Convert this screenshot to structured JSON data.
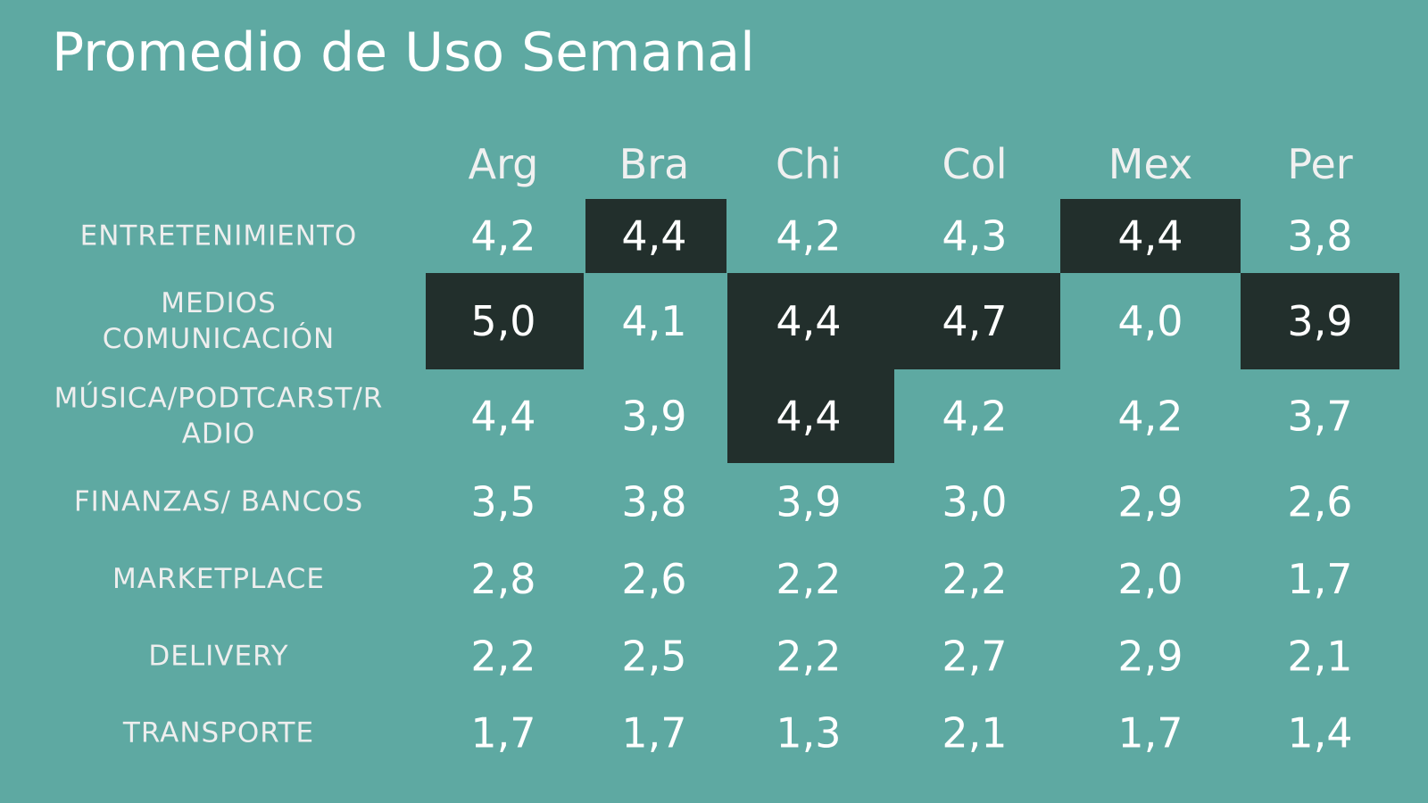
{
  "colors": {
    "background": "#5ea9a2",
    "highlight": "#222f2c",
    "text": "#ffffff"
  },
  "chart_data": {
    "type": "table",
    "title": "Promedio de Uso Semanal",
    "columns": [
      "Arg",
      "Bra",
      "Chi",
      "Col",
      "Mex",
      "Per"
    ],
    "rows": [
      {
        "label": [
          "ENTRETENIMIENTO"
        ],
        "values": [
          "4,2",
          "4,4",
          "4,2",
          "4,3",
          "4,4",
          "3,8"
        ],
        "highlighted": [
          false,
          true,
          false,
          false,
          true,
          false
        ]
      },
      {
        "label": [
          "MEDIOS",
          "COMUNICACIÓN"
        ],
        "values": [
          "5,0",
          "4,1",
          "4,4",
          "4,7",
          "4,0",
          "3,9"
        ],
        "highlighted": [
          true,
          false,
          true,
          true,
          false,
          true
        ]
      },
      {
        "label": [
          "MÚSICA/PODTCARST/R",
          "ADIO"
        ],
        "values": [
          "4,4",
          "3,9",
          "4,4",
          "4,2",
          "4,2",
          "3,7"
        ],
        "highlighted": [
          false,
          false,
          true,
          false,
          false,
          false
        ]
      },
      {
        "label": [
          "FINANZAS/ BANCOS"
        ],
        "values": [
          "3,5",
          "3,8",
          "3,9",
          "3,0",
          "2,9",
          "2,6"
        ],
        "highlighted": [
          false,
          false,
          false,
          false,
          false,
          false
        ]
      },
      {
        "label": [
          "MARKETPLACE"
        ],
        "values": [
          "2,8",
          "2,6",
          "2,2",
          "2,2",
          "2,0",
          "1,7"
        ],
        "highlighted": [
          false,
          false,
          false,
          false,
          false,
          false
        ]
      },
      {
        "label": [
          "DELIVERY"
        ],
        "values": [
          "2,2",
          "2,5",
          "2,2",
          "2,7",
          "2,9",
          "2,1"
        ],
        "highlighted": [
          false,
          false,
          false,
          false,
          false,
          false
        ]
      },
      {
        "label": [
          "TRANSPORTE"
        ],
        "values": [
          "1,7",
          "1,7",
          "1,3",
          "2,1",
          "1,7",
          "1,4"
        ],
        "highlighted": [
          false,
          false,
          false,
          false,
          false,
          false
        ]
      }
    ]
  }
}
